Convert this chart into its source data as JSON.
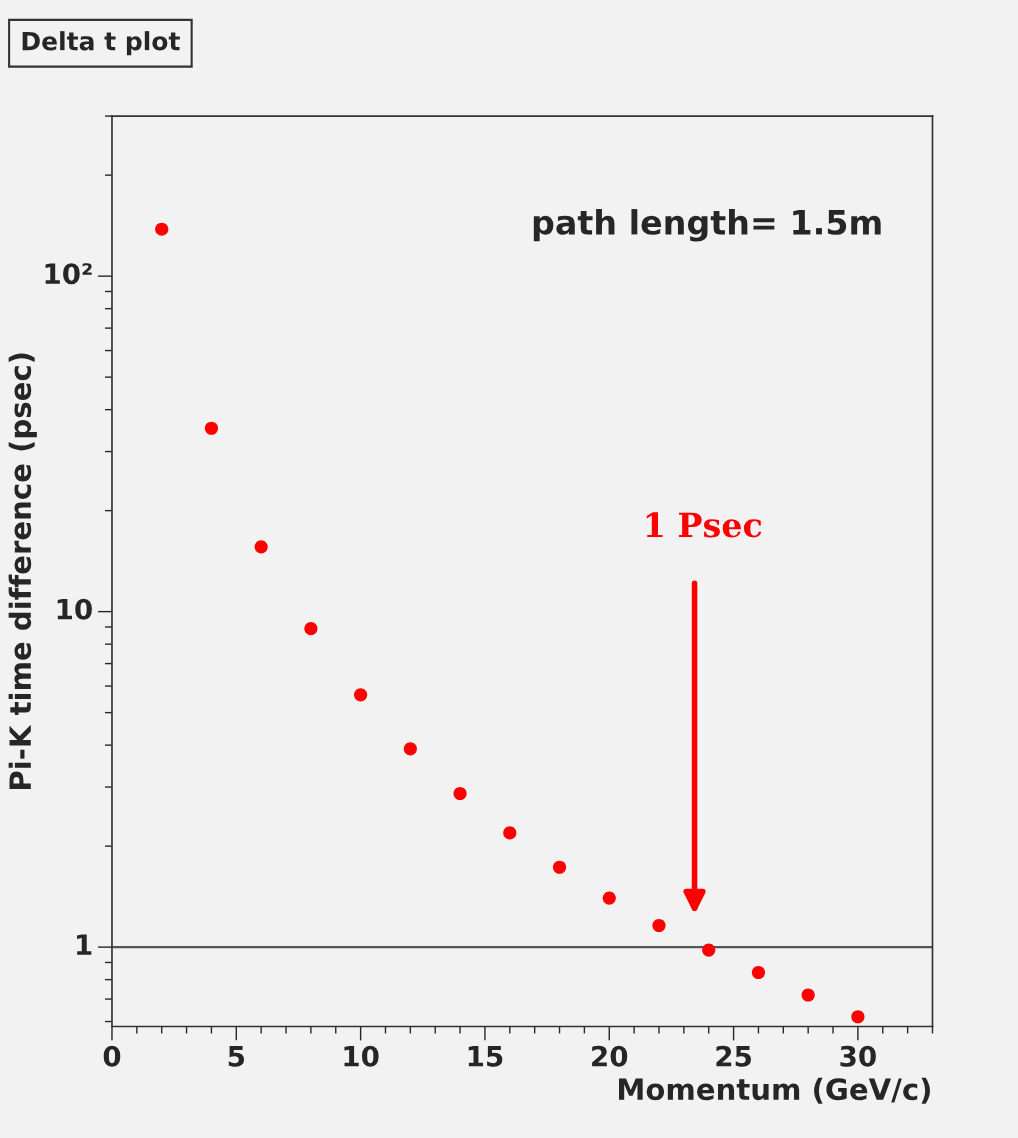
{
  "chart_data": {
    "type": "scatter",
    "title": "Delta t plot",
    "xlabel": "Momentum (GeV/c)",
    "ylabel": "Pi-K time difference (psec)",
    "x": [
      2,
      4,
      6,
      8,
      10,
      12,
      14,
      16,
      18,
      20,
      22,
      24,
      26,
      28,
      30
    ],
    "series": [
      {
        "color": "#ff0000",
        "values": [
          138,
          35.2,
          15.6,
          8.9,
          5.65,
          3.9,
          2.87,
          2.19,
          1.73,
          1.4,
          1.16,
          0.98,
          0.84,
          0.72,
          0.62
        ]
      }
    ],
    "marker": "circle",
    "log": "y",
    "grid": false,
    "legend": false,
    "xlim": [
      0,
      33
    ],
    "xticks": [
      0,
      5,
      10,
      15,
      20,
      25,
      30
    ],
    "ylim": [
      0.58,
      300
    ],
    "yticks": [
      {
        "value": 1,
        "label": "1"
      },
      {
        "value": 10,
        "label": "10"
      },
      {
        "value": 100,
        "label": "10²"
      }
    ],
    "ref_lines": [
      {
        "axis": "y",
        "value": 1,
        "color": "#555555"
      }
    ],
    "annotations": [
      "path length= 1.5m",
      "1 Psec"
    ]
  }
}
